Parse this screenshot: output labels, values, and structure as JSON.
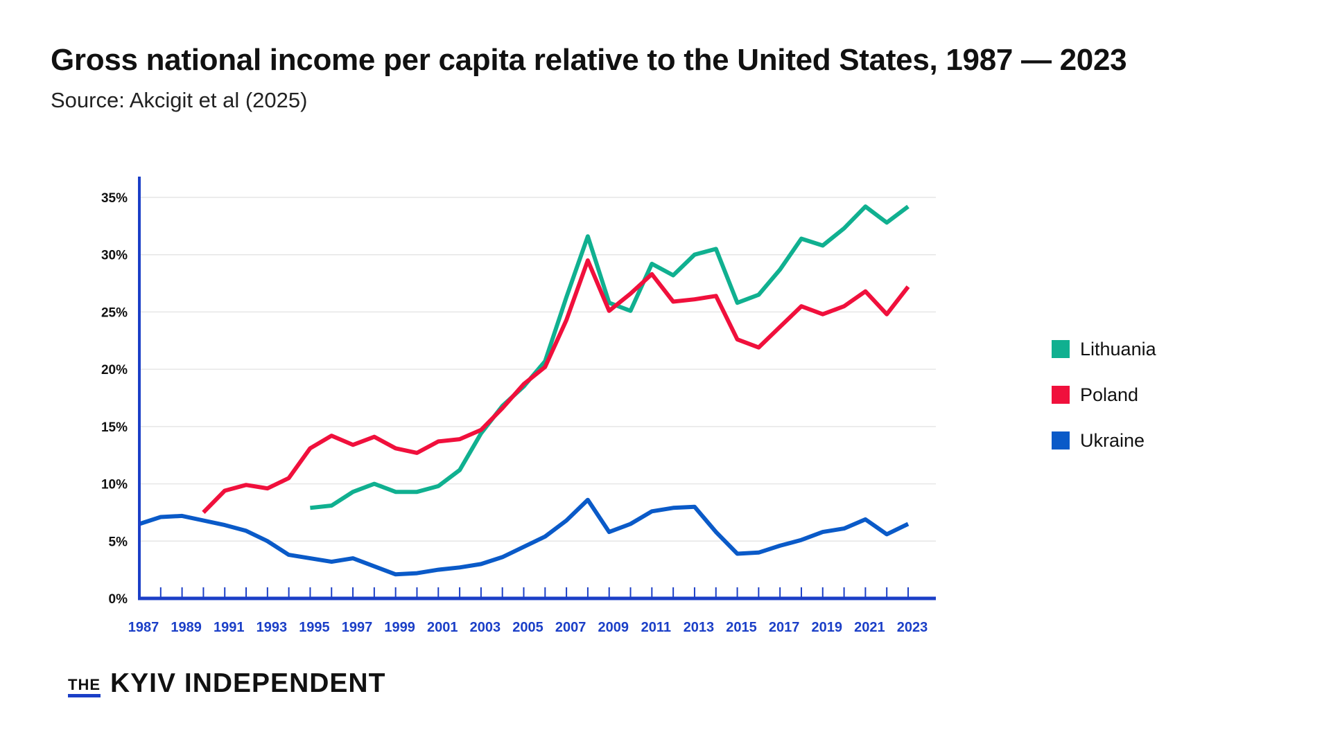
{
  "header": {
    "title": "Gross national income per capita relative to the United States, 1987 — 2023",
    "subtitle": "Source: Akcigit et al (2025)"
  },
  "brand": {
    "the": "THE",
    "name": "KYIV INDEPENDENT"
  },
  "colors": {
    "lithuania": "#10b090",
    "poland": "#f0103c",
    "ukraine": "#0a5ac8",
    "axis": "#1b3fc7",
    "grid": "#e6e6e6"
  },
  "chart_data": {
    "type": "line",
    "title": "Gross national income per capita relative to the United States, 1987 — 2023",
    "xlabel": "",
    "ylabel": "",
    "ylim": [
      0,
      35
    ],
    "y_ticks": [
      0,
      5,
      10,
      15,
      20,
      25,
      30,
      35
    ],
    "y_tick_labels": [
      "0%",
      "5%",
      "10%",
      "15%",
      "20%",
      "25%",
      "30%",
      "35%"
    ],
    "x_range": [
      1987,
      2023
    ],
    "x_ticks": [
      1987,
      1989,
      1991,
      1993,
      1995,
      1997,
      1999,
      2001,
      2003,
      2005,
      2007,
      2009,
      2011,
      2013,
      2015,
      2017,
      2019,
      2021,
      2023
    ],
    "grid": true,
    "legend_position": "right",
    "series": [
      {
        "name": "Lithuania",
        "color_key": "lithuania",
        "x": [
          1995,
          1996,
          1997,
          1998,
          1999,
          2000,
          2001,
          2002,
          2003,
          2004,
          2005,
          2006,
          2007,
          2008,
          2009,
          2010,
          2011,
          2012,
          2013,
          2014,
          2015,
          2016,
          2017,
          2018,
          2019,
          2020,
          2021,
          2022,
          2023
        ],
        "values": [
          7.9,
          8.1,
          9.3,
          10.0,
          9.3,
          9.3,
          9.8,
          11.2,
          14.4,
          16.8,
          18.5,
          20.7,
          26.3,
          31.6,
          25.8,
          25.1,
          29.2,
          28.2,
          30.0,
          30.5,
          25.8,
          26.5,
          28.7,
          31.4,
          30.8,
          32.3,
          34.2,
          32.8,
          34.2
        ]
      },
      {
        "name": "Poland",
        "color_key": "poland",
        "x": [
          1990,
          1991,
          1992,
          1993,
          1994,
          1995,
          1996,
          1997,
          1998,
          1999,
          2000,
          2001,
          2002,
          2003,
          2004,
          2005,
          2006,
          2007,
          2008,
          2009,
          2010,
          2011,
          2012,
          2013,
          2014,
          2015,
          2016,
          2017,
          2018,
          2019,
          2020,
          2021,
          2022,
          2023
        ],
        "values": [
          7.5,
          9.4,
          9.9,
          9.6,
          10.5,
          13.1,
          14.2,
          13.4,
          14.1,
          13.1,
          12.7,
          13.7,
          13.9,
          14.7,
          16.6,
          18.7,
          20.2,
          24.3,
          29.5,
          25.1,
          26.6,
          28.3,
          25.9,
          26.1,
          26.4,
          22.6,
          21.9,
          23.7,
          25.5,
          24.8,
          25.5,
          26.8,
          24.8,
          27.2
        ]
      },
      {
        "name": "Ukraine",
        "color_key": "ukraine",
        "x": [
          1987,
          1988,
          1989,
          1990,
          1991,
          1992,
          1993,
          1994,
          1995,
          1996,
          1997,
          1998,
          1999,
          2000,
          2001,
          2002,
          2003,
          2004,
          2005,
          2006,
          2007,
          2008,
          2009,
          2010,
          2011,
          2012,
          2013,
          2014,
          2015,
          2016,
          2017,
          2018,
          2019,
          2020,
          2021,
          2022,
          2023
        ],
        "values": [
          6.5,
          7.1,
          7.2,
          6.8,
          6.4,
          5.9,
          5.0,
          3.8,
          3.5,
          3.2,
          3.5,
          2.8,
          2.1,
          2.2,
          2.5,
          2.7,
          3.0,
          3.6,
          4.5,
          5.4,
          6.8,
          8.6,
          5.8,
          6.5,
          7.6,
          7.9,
          8.0,
          5.8,
          3.9,
          4.0,
          4.6,
          5.1,
          5.8,
          6.1,
          6.9,
          5.6,
          6.5
        ]
      }
    ]
  }
}
